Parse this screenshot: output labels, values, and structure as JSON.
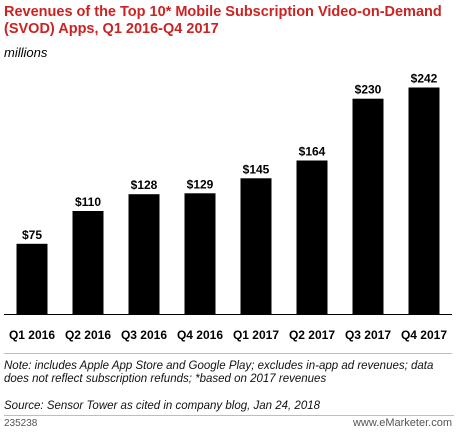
{
  "header": {
    "title": "Revenues of the Top 10* Mobile Subscription Video-on-Demand (SVOD) Apps, Q1 2016-Q4 2017",
    "subtitle": "millions"
  },
  "chart_data": {
    "type": "bar",
    "title": "Revenues of the Top 10* Mobile Subscription Video-on-Demand (SVOD) Apps, Q1 2016-Q4 2017",
    "subtitle": "millions",
    "categories": [
      "Q1 2016",
      "Q2 2016",
      "Q3 2016",
      "Q4 2016",
      "Q1 2017",
      "Q2 2017",
      "Q3 2017",
      "Q4 2017"
    ],
    "values": [
      75,
      110,
      128,
      129,
      145,
      164,
      230,
      242
    ],
    "data_labels": [
      "$75",
      "$110",
      "$128",
      "$129",
      "$145",
      "$164",
      "$230",
      "$242"
    ],
    "ylim": [
      0,
      250
    ],
    "grid": false,
    "bar_color": "#000000"
  },
  "footer": {
    "note": "Note: includes Apple App Store and Google Play; excludes in-app ad revenues; data does not reflect subscription refunds; *based on 2017 revenues",
    "source": "Source: Sensor Tower as cited in company blog, Jan 24, 2018",
    "code": "235238",
    "logo": "www.eMarketer.com"
  },
  "colors": {
    "title": "#cc2222",
    "bars": "#000000",
    "divider": "#bdbdbd"
  }
}
